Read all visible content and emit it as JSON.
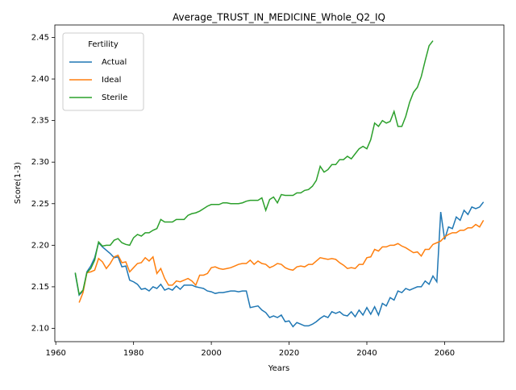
{
  "chart_data": {
    "type": "line",
    "title": "Average_TRUST_IN_MEDICINE_Whole_Q2_IQ",
    "x_label": "Years",
    "y_label": "Score(1-3)",
    "legend_title": "Fertility",
    "legend": "upper left",
    "grid": false,
    "x": [
      1965,
      1966,
      1967,
      1968,
      1969,
      1970,
      1971,
      1972,
      1973,
      1974,
      1975,
      1976,
      1977,
      1978,
      1979,
      1980,
      1981,
      1982,
      1983,
      1984,
      1985,
      1986,
      1987,
      1988,
      1989,
      1990,
      1991,
      1992,
      1993,
      1994,
      1995,
      1996,
      1997,
      1998,
      1999,
      2000,
      2001,
      2002,
      2003,
      2004,
      2005,
      2006,
      2007,
      2008,
      2009,
      2010,
      2011,
      2012,
      2013,
      2014,
      2015,
      2016,
      2017,
      2018,
      2019,
      2020,
      2021,
      2022,
      2023,
      2024,
      2025,
      2026,
      2027,
      2028,
      2029,
      2030,
      2031,
      2032,
      2033,
      2034,
      2035,
      2036,
      2037,
      2038,
      2039,
      2040,
      2041,
      2042,
      2043,
      2044,
      2045,
      2046,
      2047,
      2048,
      2049,
      2050,
      2051,
      2052,
      2053,
      2054,
      2055,
      2056,
      2057,
      2058,
      2059,
      2060,
      2061,
      2062,
      2063,
      2064,
      2065,
      2066,
      2067,
      2068,
      2069,
      2070
    ],
    "series": [
      {
        "name": "Actual",
        "color": "#1f77b4",
        "values": [
          2.166,
          2.14,
          2.145,
          2.168,
          2.175,
          2.185,
          2.203,
          2.198,
          2.194,
          2.19,
          2.185,
          2.186,
          2.174,
          2.175,
          2.158,
          2.156,
          2.153,
          2.147,
          2.148,
          2.145,
          2.15,
          2.148,
          2.153,
          2.146,
          2.148,
          2.146,
          2.151,
          2.147,
          2.152,
          2.152,
          2.152,
          2.15,
          2.149,
          2.148,
          2.145,
          2.144,
          2.142,
          2.143,
          2.143,
          2.144,
          2.145,
          2.145,
          2.144,
          2.145,
          2.145,
          2.125,
          2.126,
          2.127,
          2.122,
          2.119,
          2.113,
          2.115,
          2.113,
          2.116,
          2.108,
          2.109,
          2.102,
          2.107,
          2.105,
          2.103,
          2.103,
          2.105,
          2.108,
          2.112,
          2.115,
          2.113,
          2.12,
          2.118,
          2.12,
          2.116,
          2.115,
          2.12,
          2.114,
          2.122,
          2.116,
          2.125,
          2.117,
          2.126,
          2.116,
          2.13,
          2.127,
          2.137,
          2.134,
          2.145,
          2.143,
          2.148,
          2.146,
          2.148,
          2.15,
          2.15,
          2.157,
          2.153,
          2.163,
          2.156,
          2.24,
          2.207,
          2.222,
          2.22,
          2.234,
          2.23,
          2.242,
          2.237,
          2.246,
          2.244,
          2.246,
          2.252
        ]
      },
      {
        "name": "Ideal",
        "color": "#ff7f0e",
        "values": [
          null,
          2.131,
          2.143,
          2.167,
          2.168,
          2.17,
          2.184,
          2.18,
          2.172,
          2.178,
          2.186,
          2.188,
          2.179,
          2.18,
          2.168,
          2.173,
          2.178,
          2.179,
          2.185,
          2.181,
          2.186,
          2.166,
          2.172,
          2.16,
          2.152,
          2.152,
          2.157,
          2.156,
          2.158,
          2.16,
          2.157,
          2.152,
          2.164,
          2.164,
          2.166,
          2.173,
          2.174,
          2.172,
          2.171,
          2.172,
          2.173,
          2.175,
          2.177,
          2.178,
          2.178,
          2.182,
          2.177,
          2.181,
          2.178,
          2.177,
          2.173,
          2.175,
          2.178,
          2.177,
          2.173,
          2.171,
          2.17,
          2.174,
          2.175,
          2.174,
          2.177,
          2.177,
          2.181,
          2.185,
          2.184,
          2.183,
          2.184,
          2.183,
          2.179,
          2.176,
          2.172,
          2.173,
          2.172,
          2.177,
          2.177,
          2.185,
          2.186,
          2.195,
          2.193,
          2.198,
          2.198,
          2.2,
          2.2,
          2.202,
          2.199,
          2.197,
          2.194,
          2.191,
          2.192,
          2.187,
          2.195,
          2.195,
          2.201,
          2.203,
          2.205,
          2.21,
          2.213,
          2.215,
          2.215,
          2.218,
          2.218,
          2.221,
          2.221,
          2.225,
          2.222,
          2.23
        ]
      },
      {
        "name": "Sterile",
        "color": "#2ca02c",
        "values": [
          2.167,
          2.141,
          2.146,
          2.167,
          2.172,
          2.182,
          2.204,
          2.199,
          2.2,
          2.2,
          2.206,
          2.208,
          2.203,
          2.201,
          2.2,
          2.209,
          2.213,
          2.211,
          2.215,
          2.215,
          2.218,
          2.22,
          2.231,
          2.228,
          2.228,
          2.228,
          2.231,
          2.231,
          2.231,
          2.236,
          2.238,
          2.239,
          2.241,
          2.244,
          2.247,
          2.249,
          2.249,
          2.249,
          2.251,
          2.251,
          2.25,
          2.25,
          2.25,
          2.251,
          2.253,
          2.254,
          2.254,
          2.254,
          2.257,
          2.242,
          2.255,
          2.258,
          2.251,
          2.261,
          2.26,
          2.26,
          2.26,
          2.263,
          2.263,
          2.266,
          2.267,
          2.271,
          2.278,
          2.295,
          2.288,
          2.291,
          2.297,
          2.297,
          2.303,
          2.303,
          2.307,
          2.304,
          2.31,
          2.316,
          2.319,
          2.316,
          2.327,
          2.347,
          2.343,
          2.35,
          2.347,
          2.349,
          2.361,
          2.343,
          2.343,
          2.355,
          2.372,
          2.384,
          2.39,
          2.403,
          2.422,
          2.44,
          2.446,
          null,
          null,
          null,
          null,
          null,
          null,
          null,
          null,
          null,
          null,
          null,
          null,
          null
        ]
      }
    ],
    "xlim": [
      1959.75,
      2075.25
    ],
    "xticks": [
      1960,
      1980,
      2000,
      2020,
      2040,
      2060
    ],
    "ylim": [
      2.084,
      2.465
    ],
    "yticks": [
      {
        "value": 2.1,
        "label": "2.10"
      },
      2.15,
      {
        "value": 2.2,
        "label": "2.20"
      },
      2.25,
      {
        "value": 2.3,
        "label": "2.30"
      },
      2.35,
      {
        "value": 2.4,
        "label": "2.40"
      },
      2.45
    ]
  }
}
